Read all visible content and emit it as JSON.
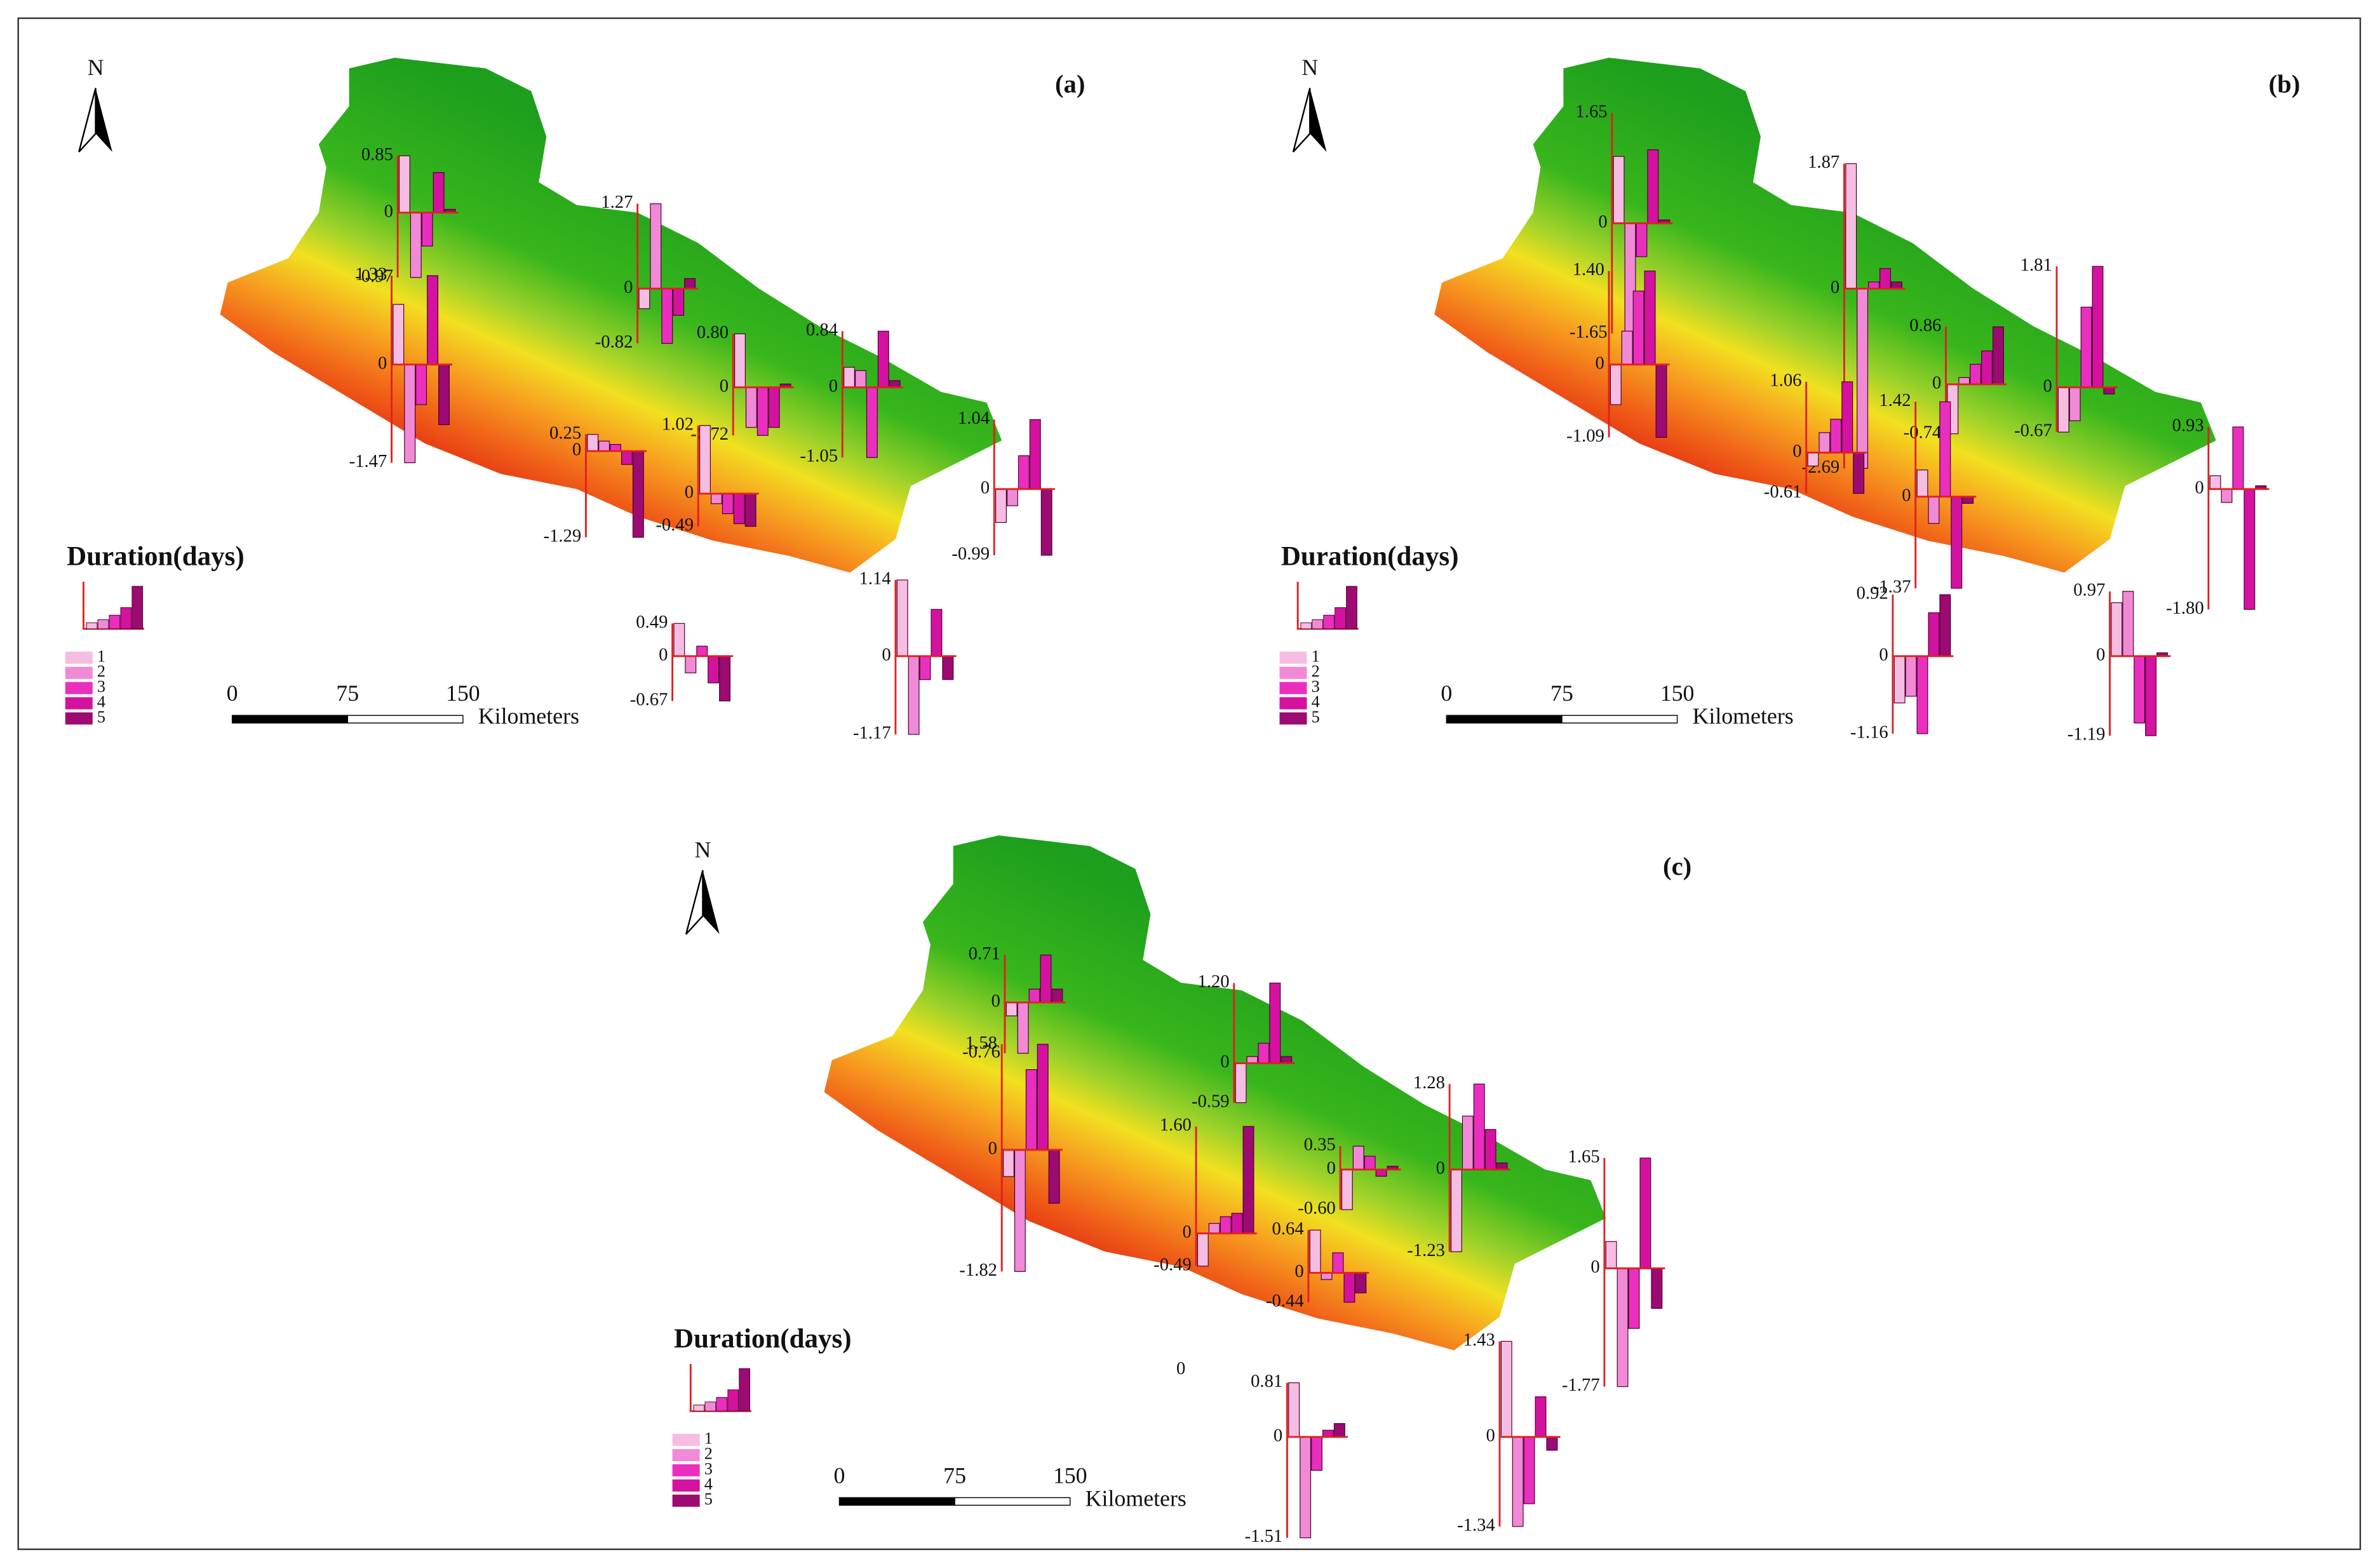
{
  "bar_colors": [
    "#f6bde3",
    "#f08ad6",
    "#ea2fbf",
    "#d4129f",
    "#9c0a72"
  ],
  "panels": [
    {
      "label": "(a)",
      "north": "N",
      "legend_title": "Duration(days)",
      "legend_items": [
        "1",
        "2",
        "3",
        "4",
        "5"
      ],
      "scale_bar": {
        "ticks": [
          0,
          75,
          150
        ],
        "unit": "Kilometers"
      },
      "stations": [
        {
          "yticks": [
            -0.97,
            0,
            0.85
          ],
          "values": [
            0.85,
            -0.97,
            -0.5,
            0.6,
            0.05
          ]
        },
        {
          "yticks": [
            -0.82,
            0,
            1.27
          ],
          "values": [
            -0.3,
            1.27,
            -0.82,
            -0.4,
            0.15
          ]
        },
        {
          "yticks": [
            -1.47,
            0,
            1.33
          ],
          "values": [
            0.9,
            -1.47,
            -0.6,
            1.33,
            -0.9
          ]
        },
        {
          "yticks": [
            -0.72,
            0,
            {
              "value": 0.8,
              "label": "0.80"
            }
          ],
          "values": [
            0.8,
            -0.6,
            -0.72,
            -0.6,
            0.05
          ]
        },
        {
          "yticks": [
            -1.05,
            0,
            0.84
          ],
          "values": [
            0.3,
            0.25,
            -1.05,
            0.84,
            0.1
          ]
        },
        {
          "yticks": [
            -1.29,
            0,
            0.25
          ],
          "values": [
            0.25,
            0.15,
            0.1,
            -0.2,
            -1.29
          ]
        },
        {
          "yticks": [
            -0.49,
            0,
            1.02
          ],
          "values": [
            1.02,
            -0.15,
            -0.3,
            -0.45,
            -0.49
          ]
        },
        {
          "yticks": [
            -0.99,
            0,
            1.04
          ],
          "values": [
            -0.5,
            -0.25,
            0.5,
            1.04,
            -0.99
          ]
        },
        {
          "yticks": [
            -0.67,
            0,
            0.49
          ],
          "values": [
            0.49,
            -0.25,
            0.15,
            -0.4,
            -0.67
          ]
        },
        {
          "yticks": [
            -1.17,
            0,
            1.14
          ],
          "values": [
            1.14,
            -1.17,
            -0.35,
            0.7,
            -0.35
          ]
        }
      ]
    },
    {
      "label": "(b)",
      "north": "N",
      "legend_title": "Duration(days)",
      "legend_items": [
        "1",
        "2",
        "3",
        "4",
        "5"
      ],
      "scale_bar": {
        "ticks": [
          0,
          75,
          150
        ],
        "unit": "Kilometers"
      },
      "stations": [
        {
          "yticks": [
            -1.65,
            0,
            1.65
          ],
          "values": [
            1.0,
            -1.65,
            -0.5,
            1.1,
            0.05
          ]
        },
        {
          "yticks": [
            -2.69,
            0,
            1.87
          ],
          "values": [
            1.87,
            -2.69,
            0.1,
            0.3,
            0.1
          ]
        },
        {
          "yticks": [
            -1.09,
            0,
            {
              "value": 1.4,
              "label": "1.40"
            }
          ],
          "values": [
            -0.6,
            0.5,
            1.1,
            1.4,
            -1.09
          ]
        },
        {
          "yticks": [
            -0.74,
            0,
            0.86
          ],
          "values": [
            -0.74,
            0.1,
            0.3,
            0.5,
            0.86
          ]
        },
        {
          "yticks": [
            -0.67,
            0,
            1.81
          ],
          "values": [
            -0.67,
            -0.5,
            1.2,
            1.81,
            -0.1
          ]
        },
        {
          "yticks": [
            -0.61,
            0,
            1.06
          ],
          "values": [
            -0.2,
            0.3,
            0.5,
            1.06,
            -0.61
          ]
        },
        {
          "yticks": [
            -1.37,
            0,
            1.42
          ],
          "values": [
            0.4,
            -0.4,
            1.42,
            -1.37,
            -0.1
          ]
        },
        {
          "yticks": [
            {
              "value": -1.8,
              "label": "-1.80"
            },
            0,
            0.93
          ],
          "values": [
            0.2,
            -0.2,
            0.93,
            -1.8,
            0.05
          ]
        },
        {
          "yticks": [
            -1.16,
            0,
            0.92
          ],
          "values": [
            -0.7,
            -0.6,
            -1.16,
            0.65,
            0.92
          ]
        },
        {
          "yticks": [
            -1.19,
            0,
            0.97
          ],
          "values": [
            0.8,
            0.97,
            -1.0,
            -1.19,
            0.05
          ]
        }
      ]
    },
    {
      "label": "(c)",
      "north": "N",
      "legend_title": "Duration(days)",
      "legend_items": [
        "1",
        "2",
        "3",
        "4",
        "5"
      ],
      "scale_bar": {
        "ticks": [
          0,
          75,
          150
        ],
        "unit": "Kilometers"
      },
      "extra_label": "0",
      "stations": [
        {
          "yticks": [
            -0.76,
            0,
            0.71
          ],
          "values": [
            -0.2,
            -0.76,
            0.2,
            0.71,
            0.2
          ]
        },
        {
          "yticks": [
            -0.59,
            0,
            {
              "value": 1.2,
              "label": "1.20"
            }
          ],
          "values": [
            -0.59,
            0.1,
            0.3,
            1.2,
            0.1
          ]
        },
        {
          "yticks": [
            -1.82,
            0,
            1.58
          ],
          "values": [
            -0.4,
            -1.82,
            1.2,
            1.58,
            -0.8
          ]
        },
        {
          "yticks": [
            -0.49,
            0,
            {
              "value": 1.6,
              "label": "1.60"
            }
          ],
          "values": [
            -0.49,
            0.15,
            0.25,
            0.3,
            1.6
          ]
        },
        {
          "yticks": [
            {
              "value": -0.6,
              "label": "-0.60"
            },
            0,
            0.35
          ],
          "values": [
            -0.6,
            0.35,
            0.2,
            -0.1,
            0.05
          ]
        },
        {
          "yticks": [
            -1.23,
            0,
            1.28
          ],
          "values": [
            -1.23,
            0.8,
            1.28,
            0.6,
            0.1
          ]
        },
        {
          "yticks": [
            -0.44,
            0,
            0.64
          ],
          "values": [
            0.64,
            -0.1,
            0.3,
            -0.44,
            -0.3
          ]
        },
        {
          "yticks": [
            -1.77,
            0,
            1.65
          ],
          "values": [
            0.4,
            -1.77,
            -0.9,
            1.65,
            -0.6
          ]
        },
        {
          "yticks": [
            -1.51,
            0,
            0.81
          ],
          "values": [
            0.81,
            -1.51,
            -0.5,
            0.1,
            0.2
          ]
        },
        {
          "yticks": [
            -1.34,
            0,
            1.43
          ],
          "values": [
            1.43,
            -1.34,
            -1.0,
            0.6,
            -0.2
          ]
        }
      ]
    }
  ]
}
